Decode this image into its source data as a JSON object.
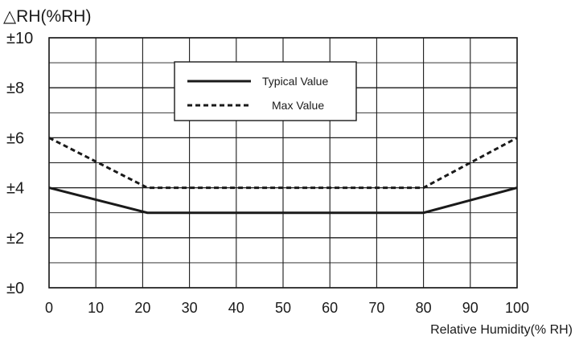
{
  "chart_data": {
    "type": "line",
    "title": "",
    "ylabel": "△RH(%RH)",
    "xlabel": "Relative Humidity(% RH)",
    "xlim": [
      0,
      100
    ],
    "ylim": [
      0,
      10
    ],
    "x_ticks": [
      0,
      10,
      20,
      30,
      40,
      50,
      60,
      70,
      80,
      90,
      100
    ],
    "x_tick_labels": [
      "0",
      "10",
      "20",
      "30",
      "40",
      "50",
      "60",
      "70",
      "80",
      "90",
      "100"
    ],
    "y_ticks": [
      0,
      2,
      4,
      6,
      8,
      10
    ],
    "y_tick_labels": [
      "±0",
      "±2",
      "±4",
      "±6",
      "±8",
      "±10"
    ],
    "grid": true,
    "legend_position": "top-center",
    "series": [
      {
        "name": "Typical Value",
        "style": "solid",
        "color": "#1a1a1a",
        "points": [
          [
            0,
            4
          ],
          [
            21,
            3
          ],
          [
            80,
            3
          ],
          [
            100,
            4
          ]
        ]
      },
      {
        "name": "Max Value",
        "style": "dashed",
        "color": "#1a1a1a",
        "points": [
          [
            0,
            6
          ],
          [
            21,
            4
          ],
          [
            80,
            4
          ],
          [
            100,
            6
          ]
        ]
      }
    ]
  }
}
